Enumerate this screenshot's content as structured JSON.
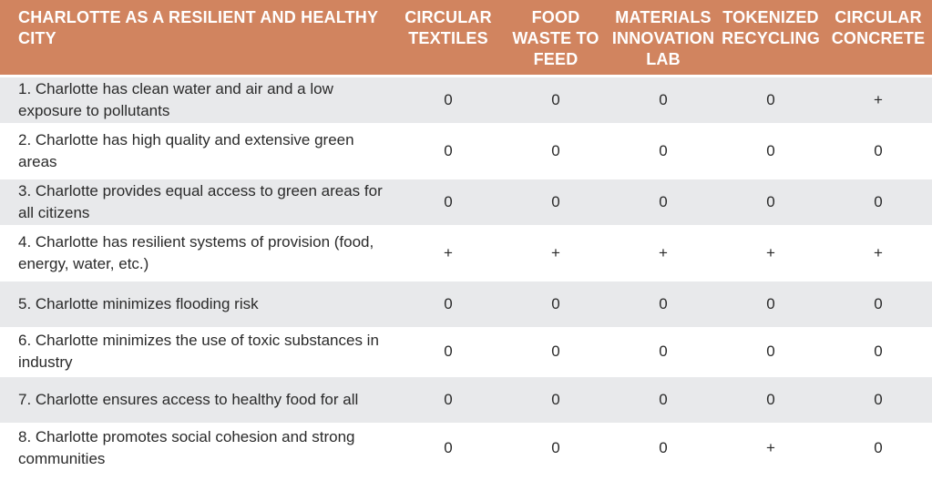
{
  "header": {
    "title": "CHARLOTTE AS A RESILIENT AND HEALTHY CITY",
    "columns": [
      [
        "CIRCULAR",
        "TEXTILES"
      ],
      [
        "FOOD",
        "WASTE TO",
        "FEED"
      ],
      [
        "MATERIALS",
        "INNOVATION",
        "LAB"
      ],
      [
        "TOKENIZED",
        "RECYCLING"
      ],
      [
        "CIRCULAR",
        "CONCRETE"
      ]
    ]
  },
  "rows": [
    {
      "label": "1. Charlotte has clean water and air and a low exposure to pollutants",
      "values": [
        "0",
        "0",
        "0",
        "0",
        "+"
      ]
    },
    {
      "label": "2. Charlotte has high quality and extensive green areas",
      "values": [
        "0",
        "0",
        "0",
        "0",
        "0"
      ]
    },
    {
      "label": "3. Charlotte provides equal access to green areas for all citizens",
      "values": [
        "0",
        "0",
        "0",
        "0",
        "0"
      ]
    },
    {
      "label": "4. Charlotte has resilient systems of provision (food, energy, water, etc.)",
      "values": [
        "+",
        "+",
        "+",
        "+",
        "+"
      ]
    },
    {
      "label": "5. Charlotte minimizes flooding risk",
      "values": [
        "0",
        "0",
        "0",
        "0",
        "0"
      ]
    },
    {
      "label": "6. Charlotte minimizes the use of toxic substances in industry",
      "values": [
        "0",
        "0",
        "0",
        "0",
        "0"
      ]
    },
    {
      "label": "7. Charlotte ensures access to healthy food for all",
      "values": [
        "0",
        "0",
        "0",
        "0",
        "0"
      ]
    },
    {
      "label": "8. Charlotte promotes social cohesion and strong communities",
      "values": [
        "0",
        "0",
        "0",
        "+",
        "0"
      ]
    }
  ],
  "colors": {
    "header_bg": "#d1845f",
    "row_shade": "#e8e9eb",
    "row_plain": "#ffffff"
  }
}
